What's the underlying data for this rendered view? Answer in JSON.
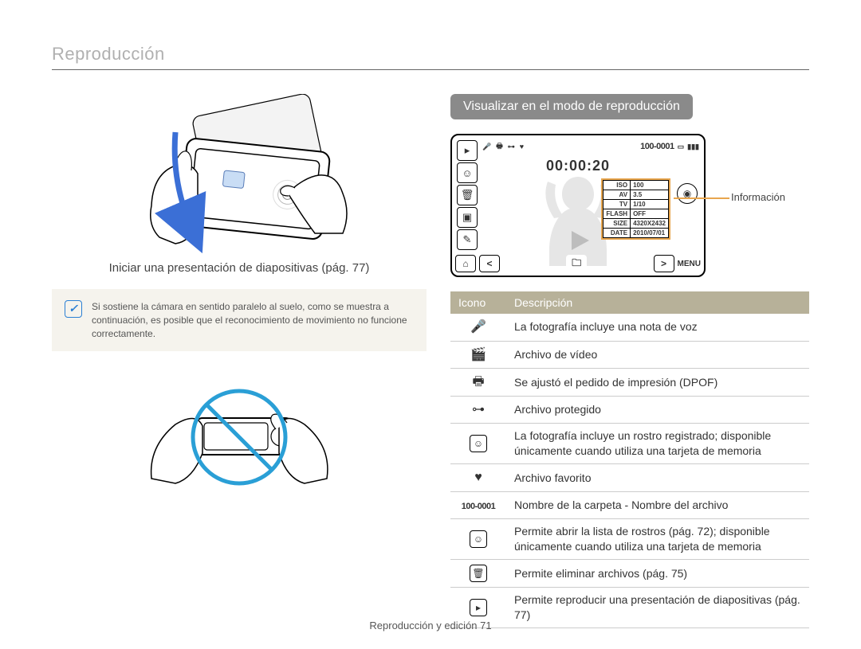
{
  "page_title": "Reproducción",
  "caption_left": "Iniciar una presentación de diapositivas (pág. 77)",
  "note_text": "Si sostiene la cámara en sentido paralelo al suelo, como se muestra a continuación, es posible que el reconocimiento de movimiento no funcione correctamente.",
  "section_pill": "Visualizar en el modo de reproducción",
  "info_label": "Información",
  "lcd": {
    "folder": "100-0001",
    "time": "00:00:20",
    "menu": "MENU",
    "info_rows": [
      [
        "ISO",
        "100"
      ],
      [
        "AV",
        "3.5"
      ],
      [
        "TV",
        "1/10"
      ],
      [
        "FLASH",
        "OFF"
      ],
      [
        "SIZE",
        "4320X2432"
      ],
      [
        "DATE",
        "2010/07/01"
      ]
    ]
  },
  "table": {
    "head_icon": "Icono",
    "head_desc": "Descripción",
    "rows": [
      {
        "icon": "mic",
        "text": "La fotografía incluye una nota de voz"
      },
      {
        "icon": "video",
        "text": "Archivo de vídeo"
      },
      {
        "icon": "print",
        "text": "Se ajustó el pedido de impresión (DPOF)"
      },
      {
        "icon": "lock",
        "text": "Archivo protegido"
      },
      {
        "icon": "face",
        "text": "La fotografía incluye un rostro registrado; disponible únicamente cuando utiliza una tarjeta de memoria"
      },
      {
        "icon": "heart",
        "text": "Archivo favorito"
      },
      {
        "icon": "folder",
        "text": "Nombre de la carpeta - Nombre del archivo"
      },
      {
        "icon": "facebox",
        "text": "Permite abrir la lista de rostros (pág. 72); disponible únicamente cuando utiliza una tarjeta de memoria"
      },
      {
        "icon": "trash",
        "text": "Permite eliminar archivos (pág. 75)"
      },
      {
        "icon": "slide",
        "text": "Permite reproducir una presentación de diapositivas (pág. 77)"
      }
    ]
  },
  "footer": "Reproducción y edición  71",
  "colors": {
    "pill_bg": "#8a8a8a",
    "table_head_bg": "#b7b199",
    "highlight": "#e8a64e",
    "prohibit": "#2a9fd6",
    "arrow": "#3b6fd6"
  }
}
